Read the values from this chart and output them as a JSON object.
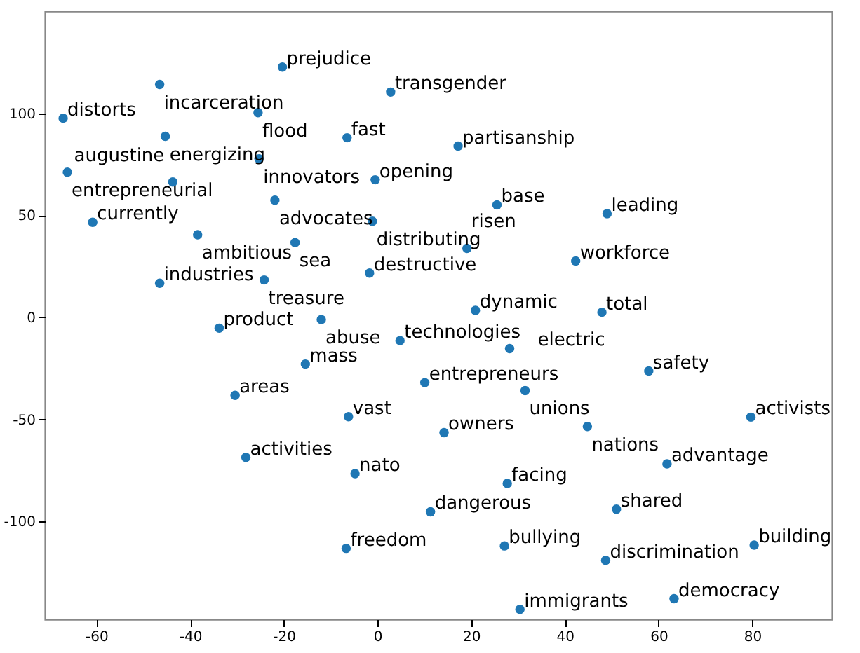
{
  "chart_data": {
    "type": "scatter",
    "marker": "circle",
    "grid": false,
    "xlim": [
      -71,
      97
    ],
    "ylim": [
      -148,
      150
    ],
    "xticks": [
      -60,
      -40,
      -20,
      0,
      20,
      40,
      60,
      80
    ],
    "yticks": [
      -100,
      -50,
      0,
      50,
      100
    ],
    "series": [
      {
        "color": "#1f77b4",
        "x": [
          -20.3,
          -46.5,
          -67.1,
          -25.5,
          2.8,
          -45.3,
          -6.5,
          -25.3,
          -66.2,
          -43.7,
          -0.5,
          -21.9,
          -60.8,
          -38.4,
          -17.6,
          -1.1,
          -46.5,
          -24.2,
          -1.7,
          17.2,
          25.5,
          49.0,
          19.1,
          42.3,
          -33.8,
          -12.0,
          4.8,
          -15.4,
          -30.4,
          -6.2,
          10.1,
          -28.1,
          -4.8,
          11.3,
          -6.7,
          14.2,
          20.9,
          47.9,
          28.2,
          57.9,
          31.5,
          79.7,
          44.8,
          61.8,
          27.7,
          51.0,
          27.1,
          80.4,
          48.7,
          63.3,
          30.4
        ],
        "values": [
          122.6,
          114.1,
          97.6,
          100.3,
          110.4,
          88.7,
          88.0,
          77.7,
          71.1,
          66.3,
          67.4,
          57.4,
          46.6,
          40.5,
          36.6,
          47.1,
          16.7,
          18.3,
          21.7,
          83.9,
          55.1,
          50.8,
          33.8,
          27.6,
          -5.3,
          -1.1,
          -11.4,
          -22.9,
          -38.2,
          -48.7,
          -32.0,
          -68.6,
          -76.6,
          -95.3,
          -113.2,
          -56.5,
          3.4,
          2.5,
          -15.3,
          -26.3,
          -35.9,
          -48.9,
          -53.5,
          -71.8,
          -81.4,
          -94.0,
          -112.0,
          -111.6,
          -119.1,
          -137.9,
          -143.1
        ],
        "value_labels": [
          "prejudice",
          "incarceration",
          "distorts",
          "flood",
          "transgender",
          "energizing",
          "fast",
          "innovators",
          "entrepreneurial",
          "augustine",
          "opening",
          "advocates",
          "currently",
          "ambitious",
          "sea",
          "distributing",
          "industries",
          "treasure",
          "destructive",
          "partisanship",
          "base",
          "leading",
          "risen",
          "workforce",
          "product",
          "abuse",
          "technologies",
          "mass",
          "areas",
          "vast",
          "entrepreneurs",
          "activities",
          "nato",
          "dangerous",
          "freedom",
          "owners",
          "dynamic",
          "total",
          "electric",
          "safety",
          "unions",
          "activists",
          "nations",
          "advantage",
          "facing",
          "shared",
          "bullying",
          "building",
          "discrimination",
          "democracy",
          "immigrants"
        ]
      }
    ]
  }
}
